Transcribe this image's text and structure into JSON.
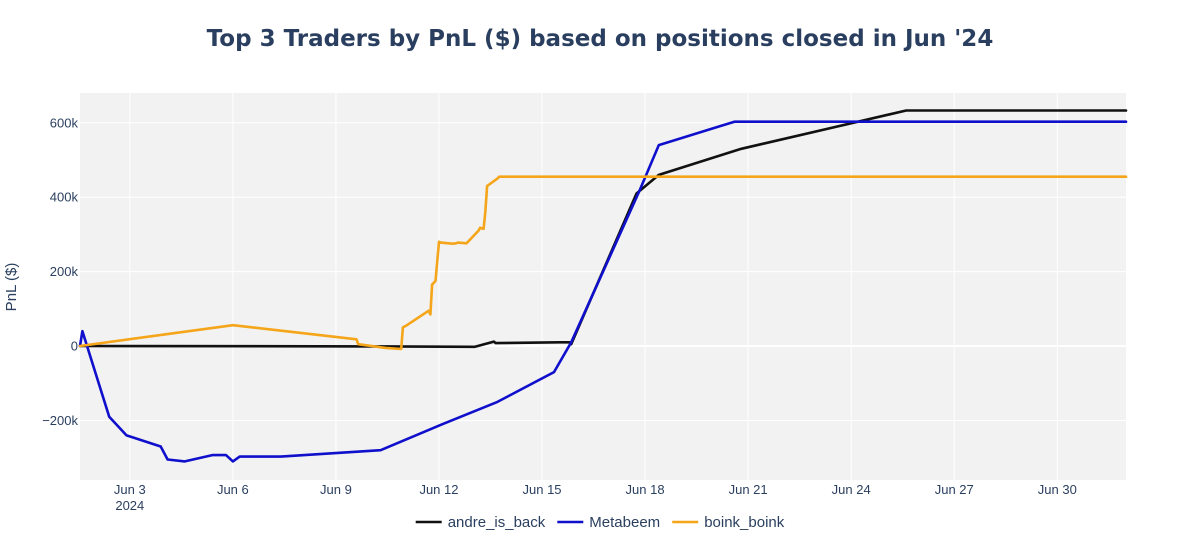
{
  "chart_data": {
    "type": "line",
    "title": "Top 3 Traders by PnL ($) based on positions closed in Jun '24",
    "xlabel": "",
    "ylabel": "PnL ($)",
    "x_unit": "days since Jun 1 2024 00:00",
    "xlim": [
      0.05,
      30.5
    ],
    "ylim": [
      -360000,
      680000
    ],
    "yticks": [
      {
        "value": -200000,
        "label": "−200k"
      },
      {
        "value": 0,
        "label": "0"
      },
      {
        "value": 200000,
        "label": "200k"
      },
      {
        "value": 400000,
        "label": "400k"
      },
      {
        "value": 600000,
        "label": "600k"
      }
    ],
    "xticks": [
      {
        "value": 1.5,
        "label": "Jun 3",
        "sublabel": "2024"
      },
      {
        "value": 4.5,
        "label": "Jun 6"
      },
      {
        "value": 7.5,
        "label": "Jun 9"
      },
      {
        "value": 10.5,
        "label": "Jun 12"
      },
      {
        "value": 13.5,
        "label": "Jun 15"
      },
      {
        "value": 16.5,
        "label": "Jun 18"
      },
      {
        "value": 19.5,
        "label": "Jun 21"
      },
      {
        "value": 22.5,
        "label": "Jun 24"
      },
      {
        "value": 25.5,
        "label": "Jun 27"
      },
      {
        "value": 28.5,
        "label": "Jun 30"
      }
    ],
    "series": [
      {
        "name": "andre_is_back",
        "color": "#111111",
        "x": [
          0.05,
          9.0,
          11.55,
          12.1,
          12.15,
          14.0,
          14.3,
          14.35,
          16.25,
          16.9,
          19.3,
          24.1,
          30.5
        ],
        "y": [
          0,
          -1000,
          -2000,
          12000,
          8000,
          10000,
          10000,
          5000,
          410000,
          460000,
          530000,
          633000,
          633000
        ]
      },
      {
        "name": "Metabeem",
        "color": "#0f0fcc",
        "x": [
          0.05,
          0.12,
          0.9,
          1.4,
          2.4,
          2.6,
          3.1,
          3.9,
          4.3,
          4.5,
          4.7,
          5.9,
          8.8,
          10.6,
          12.2,
          13.85,
          14.35,
          16.35,
          16.9,
          19.1,
          30.5
        ],
        "y": [
          0,
          40000,
          -190000,
          -240000,
          -270000,
          -305000,
          -310000,
          -293000,
          -293000,
          -310000,
          -297000,
          -297000,
          -280000,
          -210000,
          -150000,
          -70000,
          10000,
          420000,
          540000,
          603000,
          603000
        ]
      },
      {
        "name": "boink_boink",
        "color": "#f5a519",
        "x": [
          0.05,
          4.5,
          8.1,
          8.15,
          8.95,
          9.4,
          9.45,
          9.55,
          10.2,
          10.25,
          10.3,
          10.4,
          10.5,
          10.55,
          10.9,
          11.0,
          11.05,
          11.3,
          11.55,
          11.65,
          11.7,
          11.75,
          11.8,
          11.85,
          11.9,
          12.2,
          12.25,
          30.5
        ],
        "y": [
          0,
          56000,
          18000,
          5000,
          -5000,
          -8000,
          50000,
          55000,
          95000,
          85000,
          165000,
          175000,
          280000,
          278000,
          275000,
          276000,
          278000,
          276000,
          300000,
          310000,
          318000,
          316000,
          315000,
          360000,
          430000,
          450000,
          455000,
          455000
        ]
      }
    ],
    "legend": {
      "placement": "bottom-center",
      "orientation": "horizontal"
    }
  }
}
